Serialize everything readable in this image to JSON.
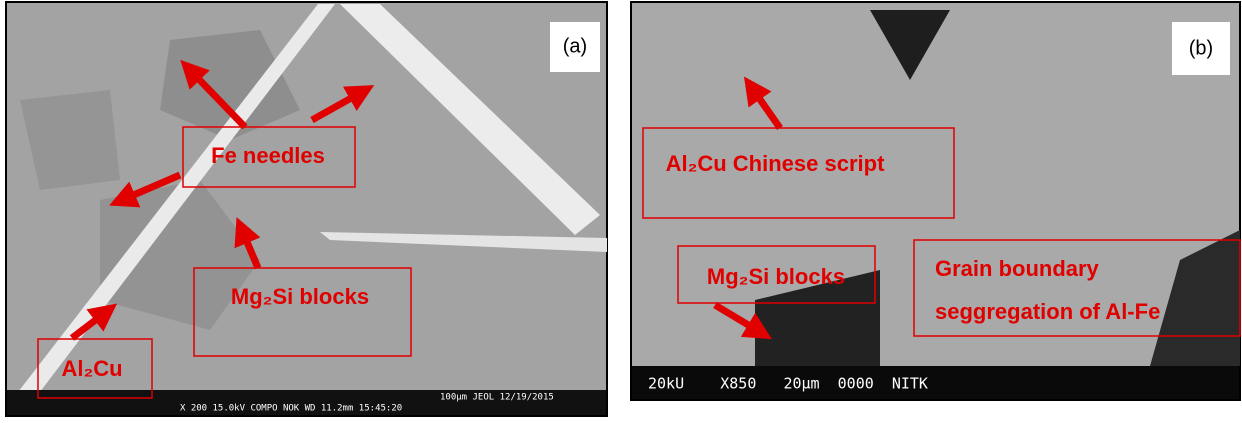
{
  "panel_a": {
    "tag": "(a)",
    "labels": {
      "fe": "Fe needles",
      "mg": "Mg₂Si blocks",
      "al": "Al₂Cu"
    },
    "footer": [
      "100µm JEOL   12/19/2015",
      "X 200      15.0kV COMPO   NOK   WD 11.2mm 15:45:20"
    ]
  },
  "panel_b": {
    "tag": "(b)",
    "labels": {
      "al": "Al₂Cu Chinese script",
      "mg": "Mg₂Si blocks",
      "grain": [
        "Grain boundary",
        "seggregation of Al-Fe"
      ]
    },
    "footer": "20kU    X850   20µm  0000  NITK"
  }
}
